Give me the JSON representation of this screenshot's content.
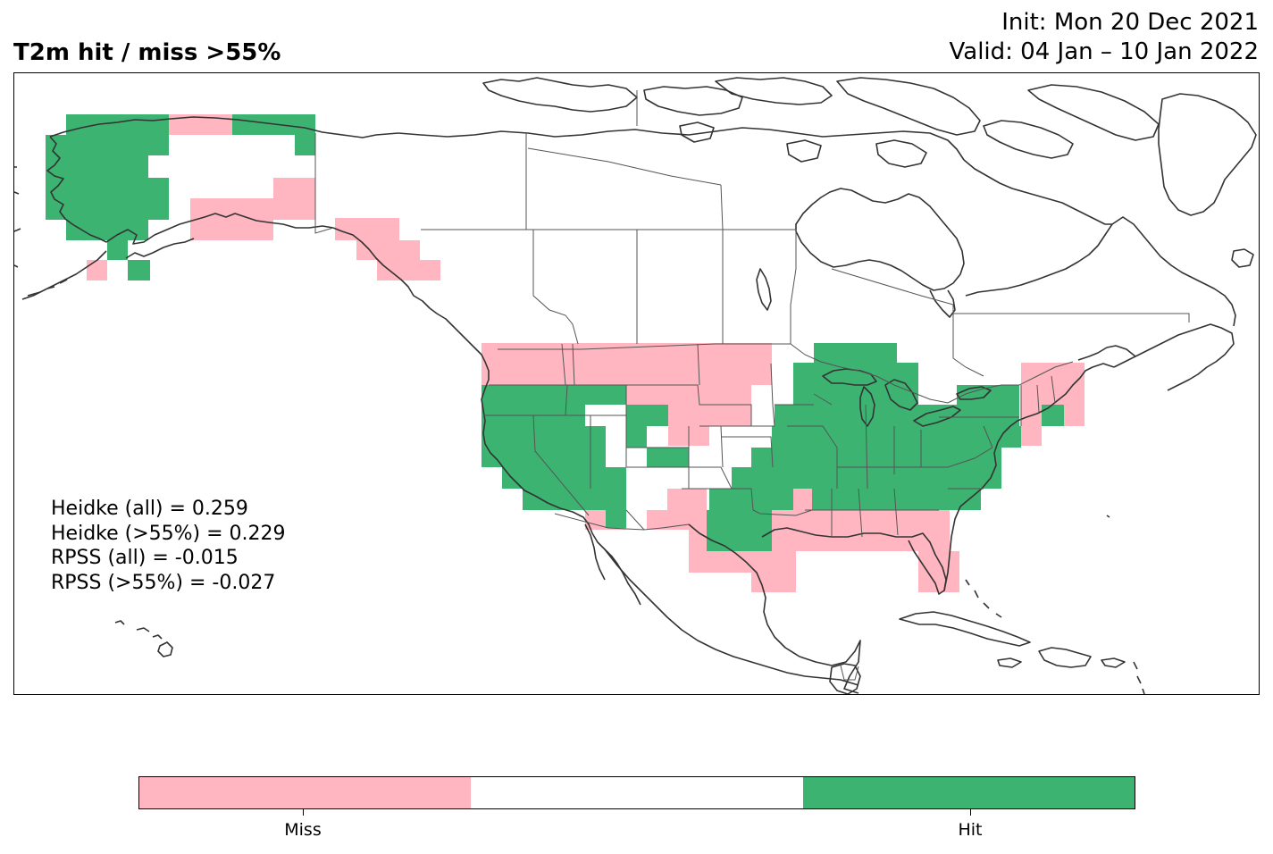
{
  "header": {
    "title": "T2m hit / miss  >55%",
    "init": "Init: Mon 20 Dec 2021",
    "valid": "Valid: 04 Jan – 10 Jan 2022"
  },
  "stats": [
    "Heidke (all) = 0.259",
    "Heidke (>55%) = 0.229",
    "RPSS (all) = -0.015",
    "RPSS (>55%) = -0.027"
  ],
  "legend": {
    "categories": [
      "Miss",
      "",
      "Hit"
    ],
    "labels": [
      "Miss",
      "Hit"
    ],
    "colors": [
      "#ffb6c1",
      "#ffffff",
      "#3cb371"
    ]
  },
  "colors": {
    "miss": "#ffb6c1",
    "hit": "#3cb371",
    "coast": "#333333",
    "border": "#555555"
  }
}
